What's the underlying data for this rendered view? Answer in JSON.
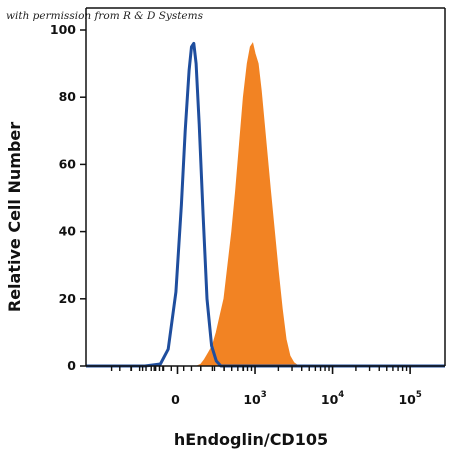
{
  "watermark": "with permission from R & D Systems",
  "chart_data": {
    "type": "area",
    "title": "",
    "xlabel": "hEndoglin/CD105",
    "ylabel": "Relative Cell Number",
    "x_scale": "biexponential",
    "x_tick_labels": [
      {
        "base": "0",
        "exp": ""
      },
      {
        "base": "10",
        "exp": "3"
      },
      {
        "base": "10",
        "exp": "4"
      },
      {
        "base": "10",
        "exp": "5"
      }
    ],
    "y_ticks": [
      0,
      20,
      40,
      60,
      80,
      100
    ],
    "ylim": [
      0,
      100
    ],
    "grid": false,
    "legend": "none",
    "series": [
      {
        "style": "outline",
        "color": "#1f4e9e",
        "points": [
          [
            -1.18,
            0
          ],
          [
            -0.42,
            0
          ],
          [
            -0.22,
            0.6
          ],
          [
            -0.12,
            5
          ],
          [
            -0.02,
            22
          ],
          [
            0.05,
            48
          ],
          [
            0.1,
            70
          ],
          [
            0.15,
            88
          ],
          [
            0.18,
            95
          ],
          [
            0.21,
            96
          ],
          [
            0.24,
            90
          ],
          [
            0.28,
            72
          ],
          [
            0.33,
            45
          ],
          [
            0.38,
            20
          ],
          [
            0.44,
            6
          ],
          [
            0.5,
            1.5
          ],
          [
            0.56,
            0
          ],
          [
            3.45,
            0
          ]
        ]
      },
      {
        "style": "filled",
        "color": "#f28323",
        "points": [
          [
            0.25,
            0
          ],
          [
            0.3,
            0.5
          ],
          [
            0.35,
            2
          ],
          [
            0.4,
            4
          ],
          [
            0.45,
            6
          ],
          [
            0.5,
            10
          ],
          [
            0.55,
            15
          ],
          [
            0.6,
            20
          ],
          [
            0.65,
            30
          ],
          [
            0.7,
            40
          ],
          [
            0.75,
            52
          ],
          [
            0.8,
            66
          ],
          [
            0.85,
            80
          ],
          [
            0.9,
            90
          ],
          [
            0.94,
            95
          ],
          [
            0.97,
            96
          ],
          [
            1.0,
            93
          ],
          [
            1.04,
            90
          ],
          [
            1.08,
            82
          ],
          [
            1.12,
            72
          ],
          [
            1.16,
            62
          ],
          [
            1.2,
            52
          ],
          [
            1.25,
            40
          ],
          [
            1.3,
            28
          ],
          [
            1.35,
            17
          ],
          [
            1.4,
            8
          ],
          [
            1.45,
            3
          ],
          [
            1.5,
            1
          ],
          [
            1.56,
            0
          ]
        ]
      }
    ]
  }
}
